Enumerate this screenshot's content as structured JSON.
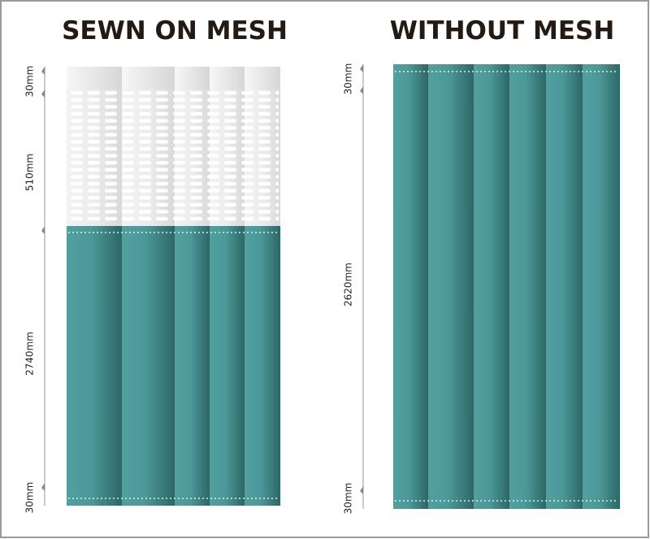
{
  "panels": [
    {
      "title": "SEWN ON MESH",
      "dimensions": [
        "30mm",
        "510mm",
        "2740mm",
        "30mm"
      ]
    },
    {
      "title": "WITHOUT MESH",
      "dimensions": [
        "30mm",
        "2620mm",
        "30mm"
      ]
    }
  ]
}
